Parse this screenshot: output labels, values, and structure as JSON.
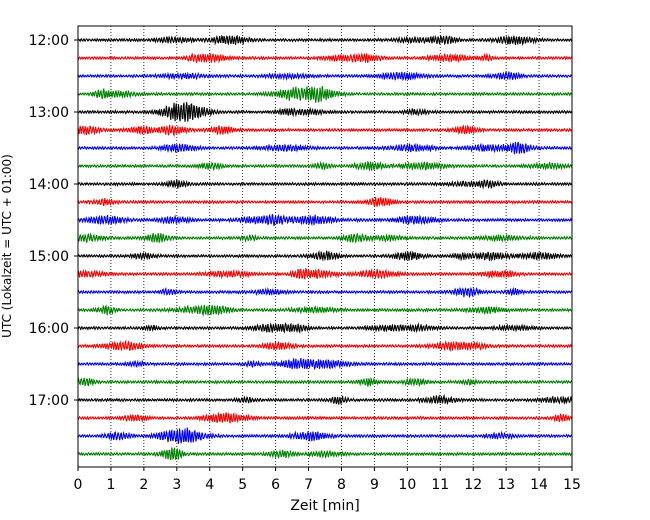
{
  "chart_data": {
    "type": "line",
    "subtype": "helicorder",
    "xlabel": "Zeit  [min]",
    "ylabel": "UTC (Lokalzeit = UTC + 01:00)",
    "xlim": [
      0,
      15
    ],
    "x_ticks": [
      "0",
      "1",
      "2",
      "3",
      "4",
      "5",
      "6",
      "7",
      "8",
      "9",
      "10",
      "11",
      "12",
      "13",
      "14",
      "15"
    ],
    "y_ticks": [
      "12:00",
      "13:00",
      "14:00",
      "15:00",
      "16:00",
      "17:00"
    ],
    "grid": "vertical dotted lines at each minute",
    "trace_interval_min": 15,
    "trace_colors": [
      "#000000",
      "#ff0000",
      "#0000ff",
      "#008000"
    ],
    "traces": [
      {
        "start": "12:00",
        "color": "#000000"
      },
      {
        "start": "12:15",
        "color": "#ff0000"
      },
      {
        "start": "12:30",
        "color": "#0000ff"
      },
      {
        "start": "12:45",
        "color": "#008000"
      },
      {
        "start": "13:00",
        "color": "#000000"
      },
      {
        "start": "13:15",
        "color": "#ff0000"
      },
      {
        "start": "13:30",
        "color": "#0000ff"
      },
      {
        "start": "13:45",
        "color": "#008000"
      },
      {
        "start": "14:00",
        "color": "#000000"
      },
      {
        "start": "14:15",
        "color": "#ff0000"
      },
      {
        "start": "14:30",
        "color": "#0000ff"
      },
      {
        "start": "14:45",
        "color": "#008000"
      },
      {
        "start": "15:00",
        "color": "#000000"
      },
      {
        "start": "15:15",
        "color": "#ff0000"
      },
      {
        "start": "15:30",
        "color": "#0000ff"
      },
      {
        "start": "15:45",
        "color": "#008000"
      },
      {
        "start": "16:00",
        "color": "#000000"
      },
      {
        "start": "16:15",
        "color": "#ff0000"
      },
      {
        "start": "16:30",
        "color": "#0000ff"
      },
      {
        "start": "16:45",
        "color": "#008000"
      },
      {
        "start": "17:00",
        "color": "#000000"
      },
      {
        "start": "17:15",
        "color": "#ff0000"
      },
      {
        "start": "17:30",
        "color": "#0000ff"
      },
      {
        "start": "17:45",
        "color": "#008000"
      }
    ]
  }
}
